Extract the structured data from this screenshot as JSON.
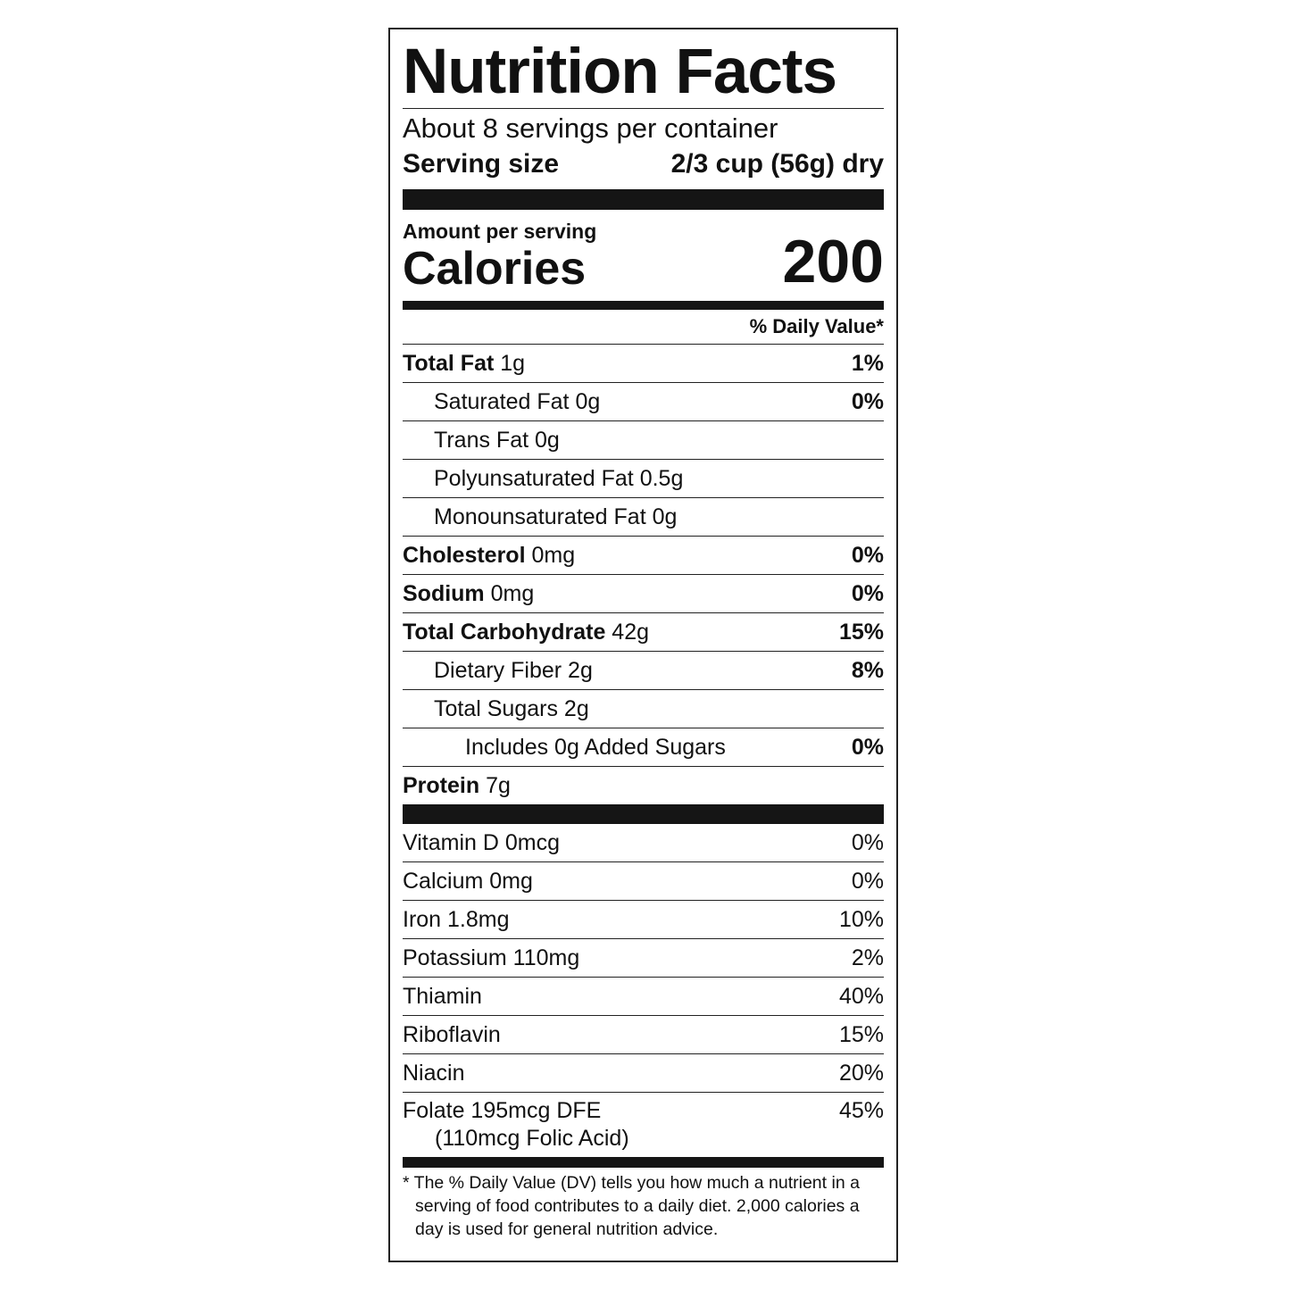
{
  "title": "Nutrition Facts",
  "servings_per_container": "About 8 servings per container",
  "serving_size": {
    "label": "Serving size",
    "value": "2/3 cup (56g) dry"
  },
  "amount_per_serving": "Amount per serving",
  "calories": {
    "label": "Calories",
    "value": "200"
  },
  "daily_value_header": "% Daily Value*",
  "nutrients": [
    {
      "name": "Total Fat",
      "amount": "1g",
      "dv": "1%",
      "bold": true,
      "indent": 0
    },
    {
      "name": "Saturated Fat",
      "amount": "0g",
      "dv": "0%",
      "bold": false,
      "indent": 1
    },
    {
      "name": "Trans Fat",
      "amount": "0g",
      "dv": "",
      "bold": false,
      "indent": 1
    },
    {
      "name": "Polyunsaturated Fat",
      "amount": "0.5g",
      "dv": "",
      "bold": false,
      "indent": 1
    },
    {
      "name": "Monounsaturated Fat",
      "amount": "0g",
      "dv": "",
      "bold": false,
      "indent": 1
    },
    {
      "name": "Cholesterol",
      "amount": "0mg",
      "dv": "0%",
      "bold": true,
      "indent": 0
    },
    {
      "name": "Sodium",
      "amount": "0mg",
      "dv": "0%",
      "bold": true,
      "indent": 0
    },
    {
      "name": "Total Carbohydrate",
      "amount": "42g",
      "dv": "15%",
      "bold": true,
      "indent": 0
    },
    {
      "name": "Dietary Fiber",
      "amount": "2g",
      "dv": "8%",
      "bold": false,
      "indent": 1
    },
    {
      "name": "Total Sugars",
      "amount": "2g",
      "dv": "",
      "bold": false,
      "indent": 1
    },
    {
      "name": "Includes 0g Added Sugars",
      "amount": "",
      "dv": "0%",
      "bold": false,
      "indent": 2
    },
    {
      "name": "Protein",
      "amount": "7g",
      "dv": "",
      "bold": true,
      "indent": 0
    }
  ],
  "vitamins": [
    {
      "name": "Vitamin D 0mcg",
      "dv": "0%"
    },
    {
      "name": "Calcium 0mg",
      "dv": "0%"
    },
    {
      "name": "Iron 1.8mg",
      "dv": "10%"
    },
    {
      "name": "Potassium 110mg",
      "dv": "2%"
    },
    {
      "name": "Thiamin",
      "dv": "40%"
    },
    {
      "name": "Riboflavin",
      "dv": "15%"
    },
    {
      "name": "Niacin",
      "dv": "20%"
    },
    {
      "name": "Folate 195mcg DFE",
      "sub": "(110mcg Folic Acid)",
      "dv": "45%"
    }
  ],
  "footnote": "* The % Daily Value (DV) tells you how much a nutrient in a serving of food contributes to a daily diet. 2,000 calories a day is used for general nutrition advice."
}
